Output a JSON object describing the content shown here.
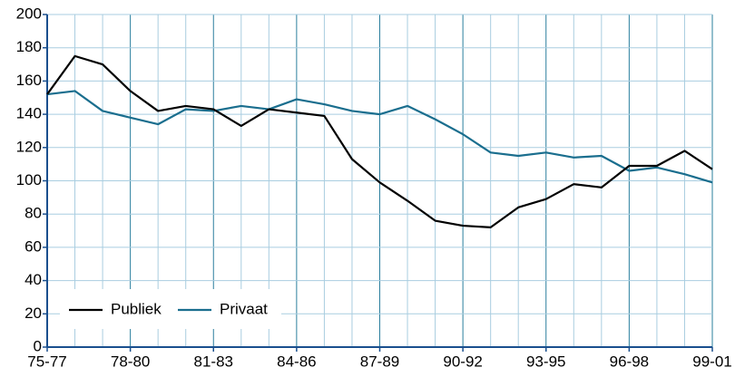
{
  "chart_data": {
    "type": "line",
    "categories": [
      "75-77",
      null,
      null,
      "78-80",
      null,
      null,
      "81-83",
      null,
      null,
      "84-86",
      null,
      null,
      "87-89",
      null,
      null,
      "90-92",
      null,
      null,
      "93-95",
      null,
      null,
      "96-98",
      null,
      null,
      "99-01"
    ],
    "series": [
      {
        "name": "Publiek",
        "color": "#000000",
        "values": [
          152,
          175,
          170,
          154,
          142,
          145,
          143,
          133,
          143,
          141,
          139,
          113,
          99,
          88,
          76,
          73,
          72,
          84,
          89,
          98,
          96,
          109,
          109,
          118,
          107
        ]
      },
      {
        "name": "Privaat",
        "color": "#1a6e8e",
        "values": [
          152,
          154,
          142,
          138,
          134,
          143,
          142,
          145,
          143,
          149,
          146,
          142,
          140,
          145,
          137,
          128,
          117,
          115,
          117,
          114,
          115,
          106,
          108,
          104,
          99
        ]
      }
    ],
    "ylim": [
      0,
      200
    ],
    "yticks": [
      0,
      20,
      40,
      60,
      80,
      100,
      120,
      140,
      160,
      180,
      200
    ],
    "grid": true,
    "legend": "lower left"
  }
}
